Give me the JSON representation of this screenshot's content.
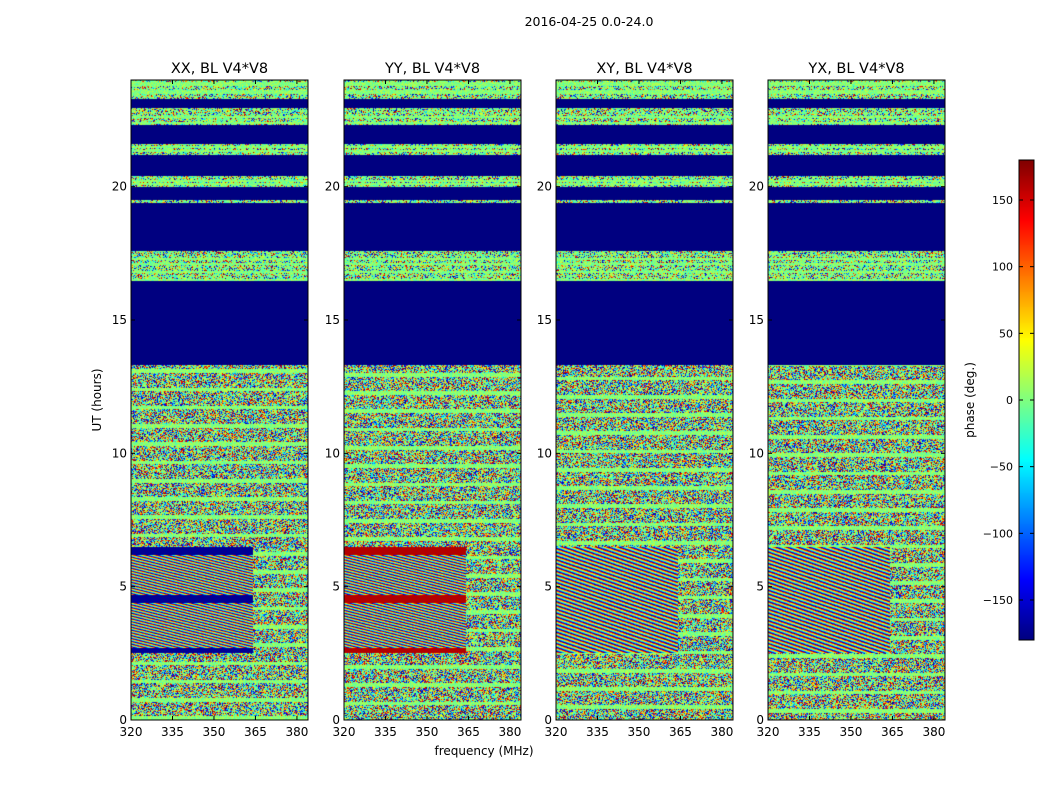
{
  "figure": {
    "suptitle": "2016-04-25 0.0-24.0"
  },
  "chart_data": {
    "type": "heatmap",
    "title": "2016-04-25 0.0-24.0",
    "xlabel": "frequency (MHz)",
    "ylabel": "UT (hours)",
    "xlim": [
      320,
      384
    ],
    "ylim": [
      0,
      24
    ],
    "x_ticks": [
      320,
      335,
      350,
      365,
      380
    ],
    "y_ticks": [
      0,
      5,
      10,
      15,
      20
    ],
    "panels": [
      {
        "name": "XX",
        "title": "XX, BL V4*V8"
      },
      {
        "name": "YY",
        "title": "YY, BL V4*V8"
      },
      {
        "name": "XY",
        "title": "XY, BL V4*V8"
      },
      {
        "name": "YX",
        "title": "YX, BL V4*V8"
      }
    ],
    "colorbar": {
      "label": "phase (deg.)",
      "range": [
        -180,
        180
      ],
      "ticks": [
        -150,
        -100,
        -50,
        0,
        50,
        100,
        150
      ],
      "tick_labels": [
        "−150",
        "−100",
        "−50",
        "0",
        "50",
        "100",
        "150"
      ],
      "colormap": "jet"
    },
    "regions": {
      "flagged_uniform_ut": [
        [
          13.3,
          16.4
        ],
        [
          17.6,
          19.4
        ],
        [
          19.5,
          20.0
        ],
        [
          20.4,
          21.2
        ],
        [
          21.6,
          22.3
        ],
        [
          22.95,
          23.3
        ]
      ],
      "flagged_value_deg": -180,
      "low_value_lines_ut": [
        16.5,
        16.8,
        17.1,
        17.3,
        20.1,
        20.2,
        21.35,
        21.5,
        22.4,
        22.6,
        23.5,
        23.6,
        23.8,
        23.9
      ],
      "noise_region_ut": [
        0.0,
        13.3
      ],
      "fringe_region_ut": [
        2.5,
        6.5
      ],
      "fringe_region_mhz": [
        320,
        364
      ]
    }
  }
}
